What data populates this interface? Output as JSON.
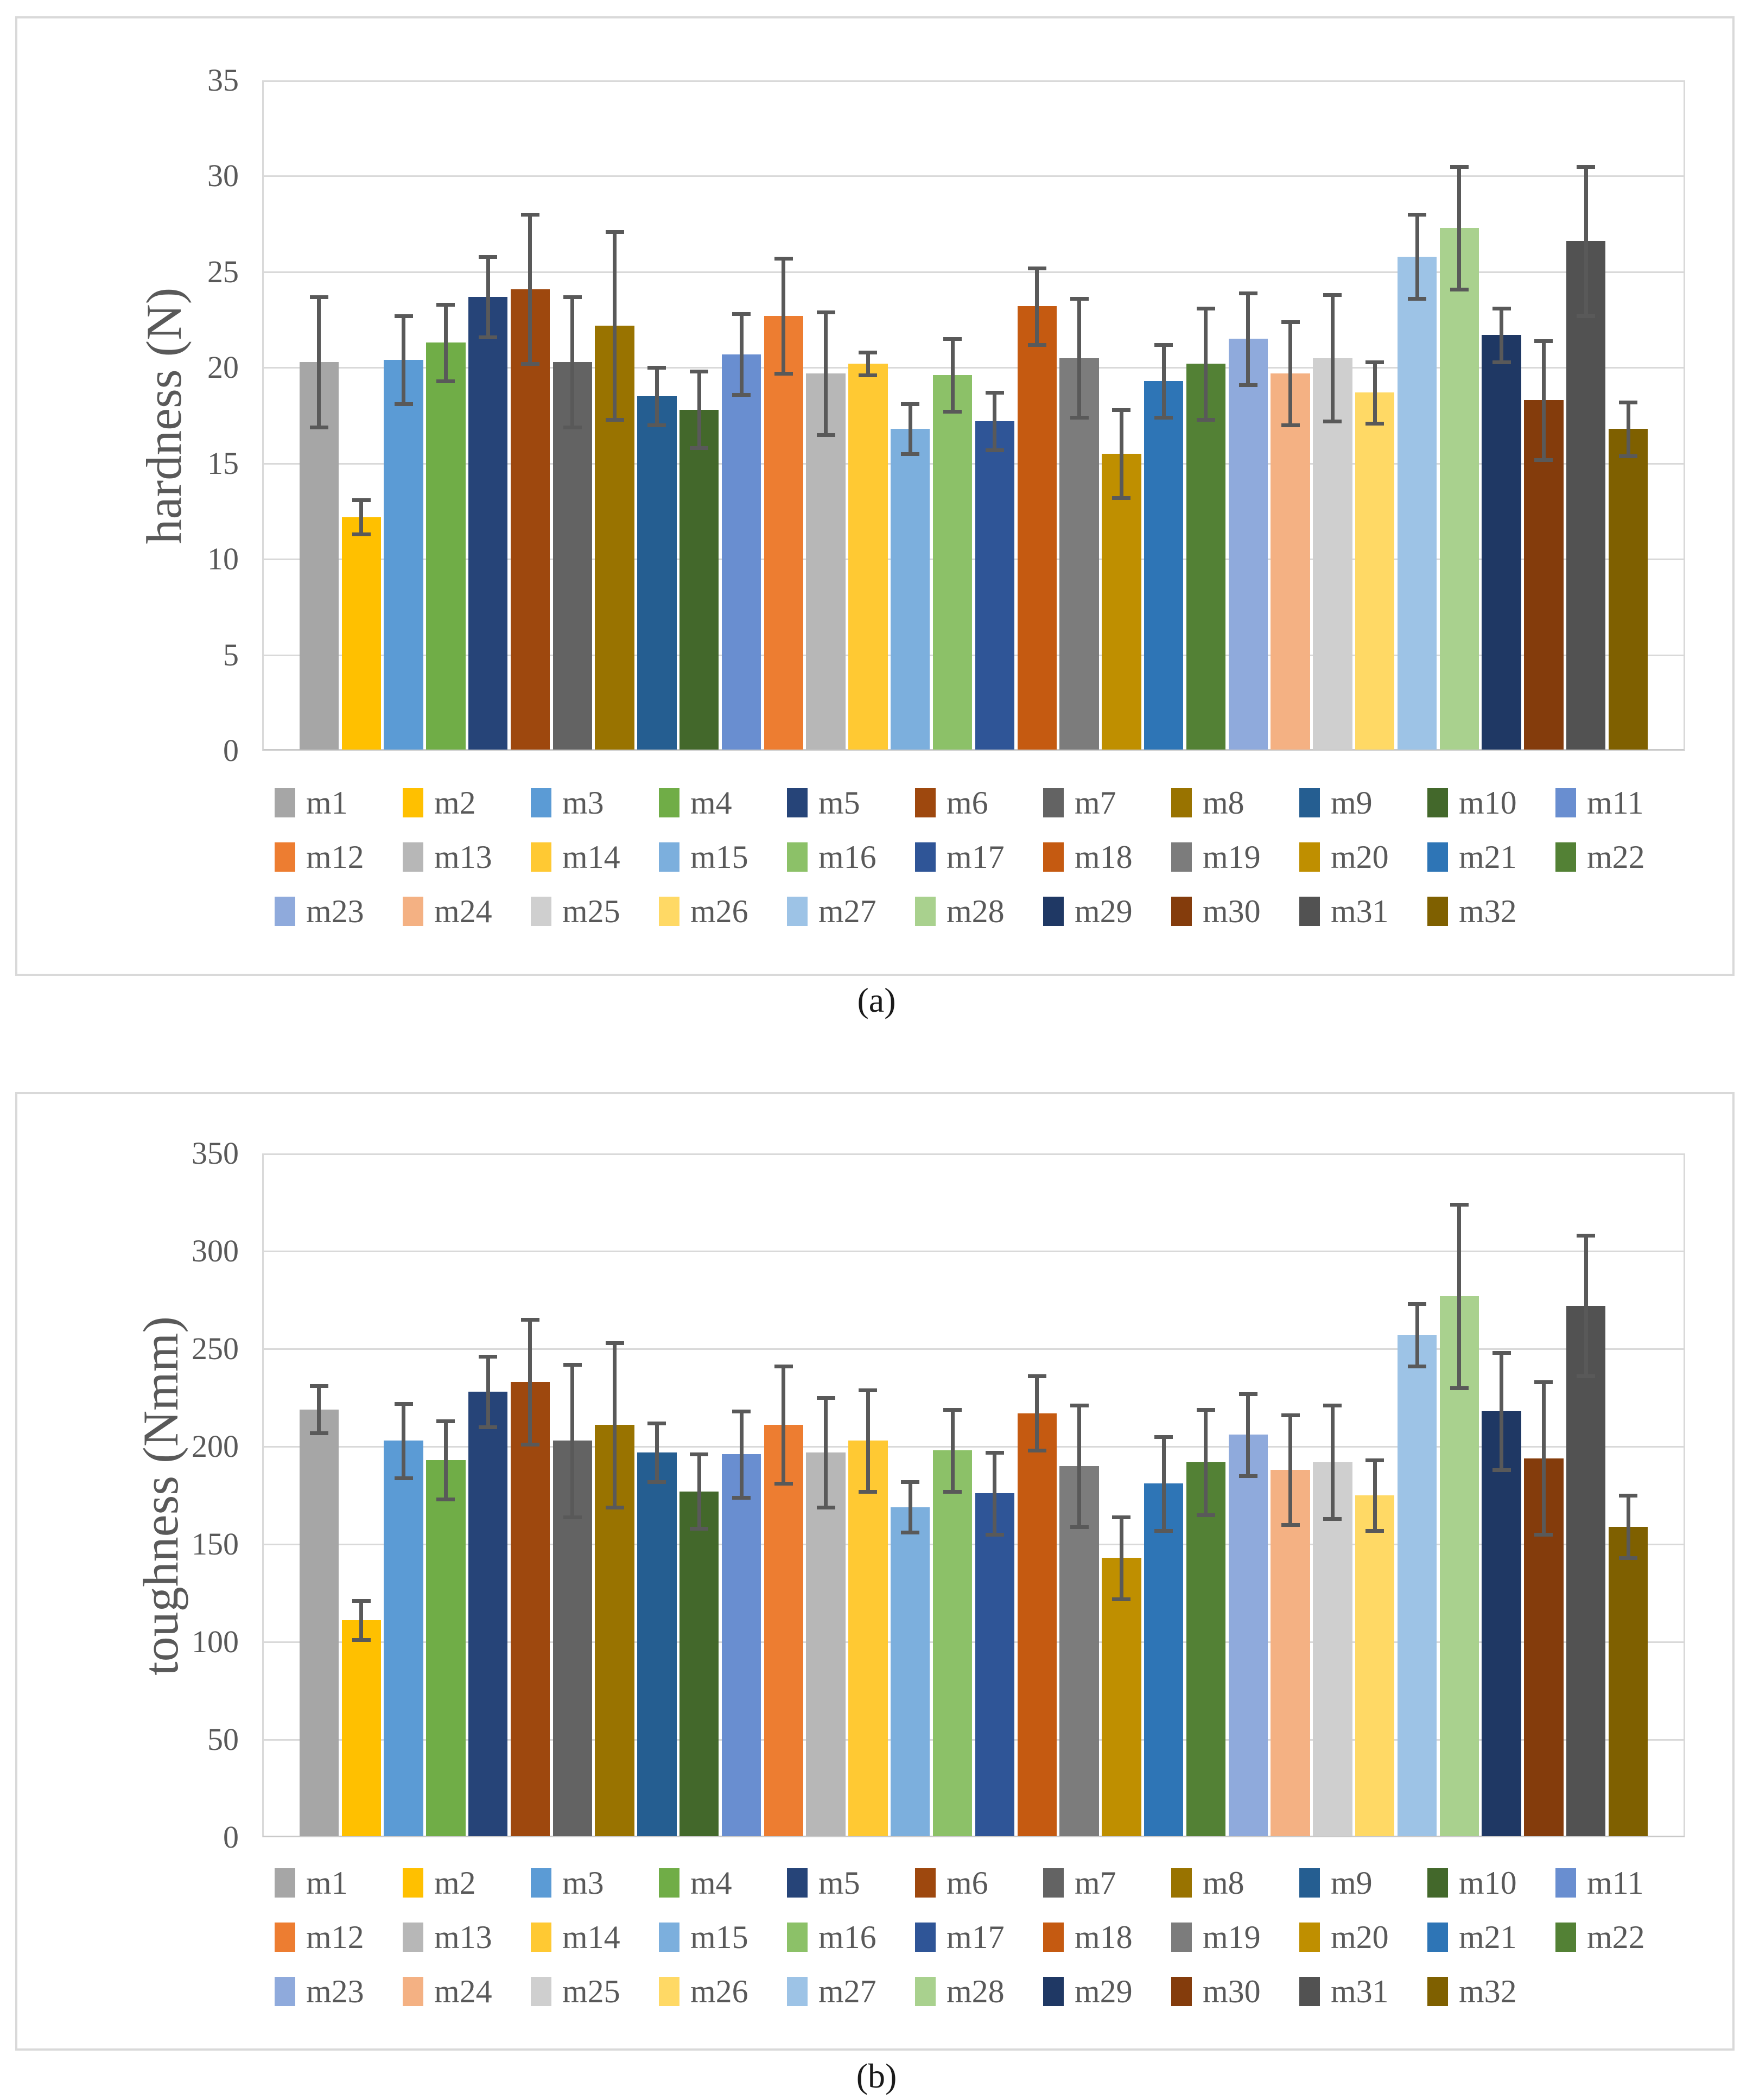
{
  "captions": {
    "a": "(a)",
    "b": "(b)"
  },
  "palette": {
    "gridline": "#D9D9D9",
    "axis_line": "#C9C9C9",
    "error_bar": "#595959",
    "tick_text": "#595959",
    "caption_text": "#1a1a1a"
  },
  "series_labels": [
    "m1",
    "m2",
    "m3",
    "m4",
    "m5",
    "m6",
    "m7",
    "m8",
    "m9",
    "m10",
    "m11",
    "m12",
    "m13",
    "m14",
    "m15",
    "m16",
    "m17",
    "m18",
    "m19",
    "m20",
    "m21",
    "m22",
    "m23",
    "m24",
    "m25",
    "m26",
    "m27",
    "m28",
    "m29",
    "m30",
    "m31",
    "m32"
  ],
  "series_colors": [
    "#A6A6A6",
    "#FFC000",
    "#5B9BD5",
    "#70AD47",
    "#264478",
    "#9E480E",
    "#636363",
    "#997300",
    "#255E91",
    "#43682B",
    "#698ED0",
    "#ED7D31",
    "#B7B7B7",
    "#FFC933",
    "#7CAFDD",
    "#8CC168",
    "#2F5597",
    "#C55A11",
    "#7C7C7C",
    "#BF8F00",
    "#2E75B6",
    "#538135",
    "#8FAADC",
    "#F4B183",
    "#CFCFCF",
    "#FFD965",
    "#9DC3E6",
    "#A9D18E",
    "#1F3864",
    "#843C0C",
    "#525252",
    "#7F6000"
  ],
  "legend_rows": [
    11,
    11,
    10
  ],
  "chart_data": [
    {
      "type": "bar",
      "panel": "a",
      "title": "",
      "xlabel": "",
      "ylabel": "hardness (N)",
      "ylim": [
        0,
        35
      ],
      "yticks": [
        0,
        5,
        10,
        15,
        20,
        25,
        30,
        35
      ],
      "grid": true,
      "legend_position": "bottom",
      "categories": [
        "m1",
        "m2",
        "m3",
        "m4",
        "m5",
        "m6",
        "m7",
        "m8",
        "m9",
        "m10",
        "m11",
        "m12",
        "m13",
        "m14",
        "m15",
        "m16",
        "m17",
        "m18",
        "m19",
        "m20",
        "m21",
        "m22",
        "m23",
        "m24",
        "m25",
        "m26",
        "m27",
        "m28",
        "m29",
        "m30",
        "m31",
        "m32"
      ],
      "values": [
        20.3,
        12.2,
        20.4,
        21.3,
        23.7,
        24.1,
        20.3,
        22.2,
        18.5,
        17.8,
        20.7,
        22.7,
        19.7,
        20.2,
        16.8,
        19.6,
        17.2,
        23.2,
        20.5,
        15.5,
        19.3,
        20.2,
        21.5,
        19.7,
        20.5,
        18.7,
        25.8,
        27.3,
        21.7,
        18.3,
        26.6,
        16.8
      ],
      "errors": [
        3.4,
        0.9,
        2.3,
        2.0,
        2.1,
        3.9,
        3.4,
        4.9,
        1.5,
        2.0,
        2.1,
        3.0,
        3.2,
        0.6,
        1.3,
        1.9,
        1.5,
        2.0,
        3.1,
        2.3,
        1.9,
        2.9,
        2.4,
        2.7,
        3.3,
        1.6,
        2.2,
        3.2,
        1.4,
        3.1,
        3.9,
        1.4
      ]
    },
    {
      "type": "bar",
      "panel": "b",
      "title": "",
      "xlabel": "",
      "ylabel": "toughness (Nmm)",
      "ylim": [
        0,
        350
      ],
      "yticks": [
        0,
        50,
        100,
        150,
        200,
        250,
        300,
        350
      ],
      "grid": true,
      "legend_position": "bottom",
      "categories": [
        "m1",
        "m2",
        "m3",
        "m4",
        "m5",
        "m6",
        "m7",
        "m8",
        "m9",
        "m10",
        "m11",
        "m12",
        "m13",
        "m14",
        "m15",
        "m16",
        "m17",
        "m18",
        "m19",
        "m20",
        "m21",
        "m22",
        "m23",
        "m24",
        "m25",
        "m26",
        "m27",
        "m28",
        "m29",
        "m30",
        "m31",
        "m32"
      ],
      "values": [
        219,
        111,
        203,
        193,
        228,
        233,
        203,
        211,
        197,
        177,
        196,
        211,
        197,
        203,
        169,
        198,
        176,
        217,
        190,
        143,
        181,
        192,
        206,
        188,
        192,
        175,
        257,
        277,
        218,
        194,
        272,
        159
      ],
      "errors": [
        12,
        10,
        19,
        20,
        18,
        32,
        39,
        42,
        15,
        19,
        22,
        30,
        28,
        26,
        13,
        21,
        21,
        19,
        31,
        21,
        24,
        27,
        21,
        28,
        29,
        18,
        16,
        47,
        30,
        39,
        36,
        16
      ]
    }
  ]
}
